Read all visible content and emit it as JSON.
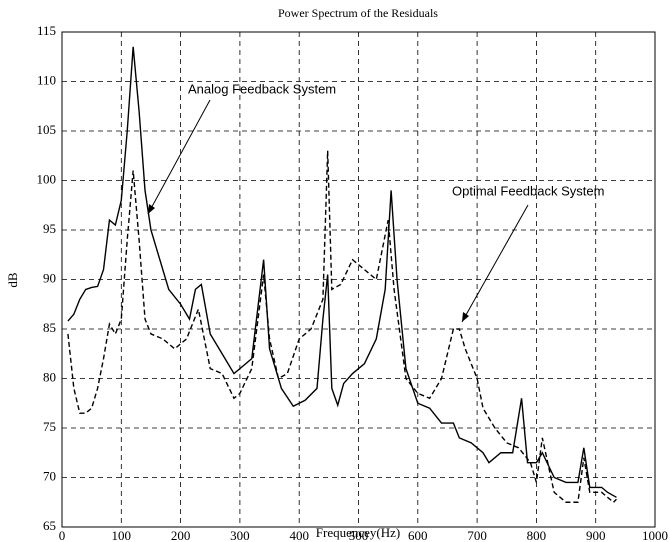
{
  "chart_data": {
    "type": "line",
    "title": "Power Spectrum of the Residuals",
    "xlabel": "Frequencey(Hz)",
    "ylabel": "dB",
    "xlim": [
      0,
      1000
    ],
    "xticks": [
      0,
      100,
      200,
      300,
      400,
      500,
      600,
      700,
      800,
      900,
      1000
    ],
    "ylim": [
      65,
      115
    ],
    "yticks": [
      65,
      70,
      75,
      80,
      85,
      90,
      95,
      100,
      105,
      110,
      115
    ],
    "grid": true,
    "series": [
      {
        "name": "Analog Feedback System",
        "color": "#000000",
        "dash": "solid",
        "x": [
          10,
          20,
          30,
          40,
          50,
          60,
          70,
          80,
          90,
          100,
          110,
          120,
          130,
          140,
          150,
          160,
          180,
          200,
          215,
          225,
          235,
          250,
          270,
          290,
          300,
          320,
          340,
          350,
          370,
          390,
          410,
          430,
          440,
          448,
          455,
          465,
          475,
          490,
          510,
          530,
          545,
          555,
          565,
          580,
          600,
          620,
          640,
          660,
          670,
          690,
          710,
          720,
          740,
          760,
          775,
          785,
          800,
          810,
          830,
          850,
          870,
          880,
          890,
          910,
          920,
          935
        ],
        "values": [
          85.8,
          86.5,
          88,
          89,
          89.2,
          89.3,
          91,
          96,
          95.5,
          98,
          105,
          113.5,
          107,
          99,
          95,
          93,
          89,
          87.5,
          86,
          89,
          89.5,
          84.5,
          82.5,
          80.5,
          81,
          82,
          92,
          83,
          79,
          77.2,
          77.8,
          79,
          86,
          90.5,
          79,
          77.3,
          79.5,
          80.5,
          81.5,
          84,
          89,
          99,
          90,
          81,
          77.5,
          77,
          75.5,
          75.5,
          74,
          73.5,
          72.5,
          71.5,
          72.5,
          72.5,
          78,
          71.5,
          71.5,
          72.5,
          70,
          69.5,
          69.5,
          73,
          69,
          69,
          68.5,
          68
        ]
      },
      {
        "name": "Optimal Feedback System",
        "color": "#000000",
        "dash": "dashed",
        "x": [
          10,
          20,
          30,
          40,
          50,
          60,
          70,
          80,
          90,
          100,
          110,
          120,
          130,
          140,
          150,
          170,
          190,
          210,
          230,
          250,
          270,
          290,
          300,
          320,
          340,
          350,
          365,
          380,
          400,
          420,
          440,
          448,
          455,
          470,
          490,
          510,
          530,
          550,
          560,
          580,
          600,
          620,
          640,
          660,
          670,
          680,
          700,
          710,
          730,
          750,
          770,
          790,
          800,
          810,
          830,
          850,
          870,
          880,
          890,
          910,
          930,
          935
        ],
        "values": [
          84.5,
          79,
          76.5,
          76.5,
          77,
          79,
          82,
          85.5,
          84.5,
          86,
          94,
          101,
          94,
          86,
          84.5,
          84,
          83,
          84,
          87,
          81,
          80.5,
          78,
          78.5,
          81,
          90.5,
          84,
          80,
          80.5,
          84,
          85,
          88,
          103,
          89,
          89.5,
          92,
          91,
          90,
          96,
          89,
          80,
          78.5,
          78,
          80,
          85,
          85,
          83,
          80,
          77,
          75,
          73.5,
          73,
          71.5,
          69.5,
          74,
          68.5,
          67.5,
          67.5,
          72,
          68.5,
          68.5,
          67.5,
          67.8
        ]
      }
    ]
  }
}
